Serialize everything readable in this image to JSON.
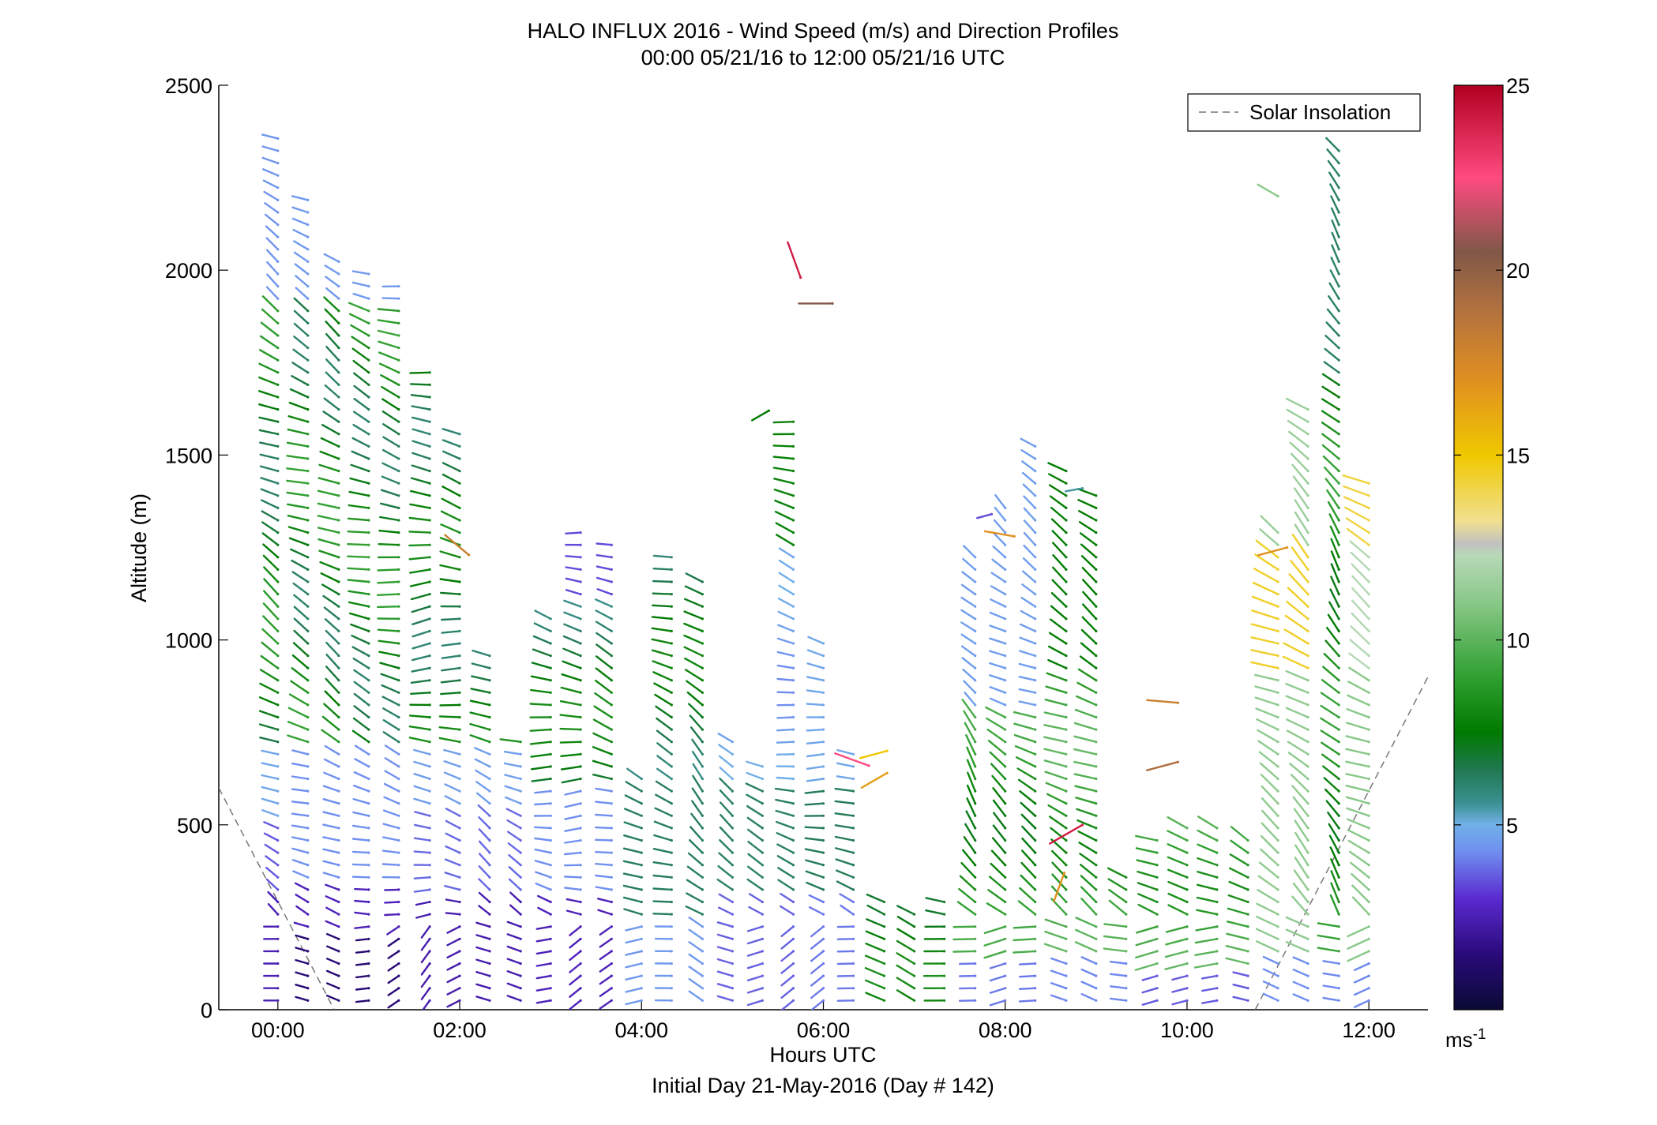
{
  "chart_data": {
    "type": "wind-barb-profile",
    "title": "HALO INFLUX 2016 - Wind Speed (m/s) and Direction Profiles",
    "subtitle": "00:00 05/21/16 to 12:00 05/21/16  UTC",
    "xlabel": "Hours UTC",
    "xlabel2": "Initial Day 21-May-2016 (Day # 142)",
    "ylabel": "Altitude (m)",
    "xlim": [
      -0.65,
      12.65
    ],
    "ylim": [
      0,
      2500
    ],
    "xticks": [
      {
        "value": 0,
        "label": "00:00"
      },
      {
        "value": 2,
        "label": "02:00"
      },
      {
        "value": 4,
        "label": "04:00"
      },
      {
        "value": 6,
        "label": "06:00"
      },
      {
        "value": 8,
        "label": "08:00"
      },
      {
        "value": 10,
        "label": "10:00"
      },
      {
        "value": 12,
        "label": "12:00"
      }
    ],
    "yticks": [
      {
        "value": 0,
        "label": "0"
      },
      {
        "value": 500,
        "label": "500"
      },
      {
        "value": 1000,
        "label": "1000"
      },
      {
        "value": 1500,
        "label": "1500"
      },
      {
        "value": 2000,
        "label": "2000"
      },
      {
        "value": 2500,
        "label": "2500"
      }
    ],
    "legend": {
      "label": "Solar Insolation",
      "position": "top-right"
    },
    "colorbar": {
      "range": [
        0,
        25
      ],
      "ticks": [
        {
          "value": 5,
          "label": "5"
        },
        {
          "value": 10,
          "label": "10"
        },
        {
          "value": 15,
          "label": "15"
        },
        {
          "value": 20,
          "label": "20"
        },
        {
          "value": 25,
          "label": "25"
        }
      ],
      "unit_base": "ms",
      "unit_exp": "-1",
      "stops": [
        {
          "v": 0,
          "c": "#0a0a35"
        },
        {
          "v": 1.5,
          "c": "#2a0a7a"
        },
        {
          "v": 3,
          "c": "#5a2ad0"
        },
        {
          "v": 4.3,
          "c": "#7090f0"
        },
        {
          "v": 5,
          "c": "#70b0e8"
        },
        {
          "v": 5.6,
          "c": "#3a9090"
        },
        {
          "v": 6.5,
          "c": "#207850"
        },
        {
          "v": 7.5,
          "c": "#007a00"
        },
        {
          "v": 9,
          "c": "#30a030"
        },
        {
          "v": 11,
          "c": "#88c888"
        },
        {
          "v": 12.3,
          "c": "#b8d8b8"
        },
        {
          "v": 12.6,
          "c": "#c0c0c0"
        },
        {
          "v": 13.2,
          "c": "#f0e090"
        },
        {
          "v": 15,
          "c": "#f0c800"
        },
        {
          "v": 17,
          "c": "#e09020"
        },
        {
          "v": 19,
          "c": "#b07040"
        },
        {
          "v": 20.5,
          "c": "#805848"
        },
        {
          "v": 22.5,
          "c": "#ff4a80"
        },
        {
          "v": 25,
          "c": "#b00020"
        }
      ]
    },
    "solar_insolation": {
      "left": [
        {
          "x": -0.65,
          "y": 600
        },
        {
          "x": 0.62,
          "y": 0
        }
      ],
      "right": [
        {
          "x": 10.75,
          "y": 0
        },
        {
          "x": 12.65,
          "y": 900
        }
      ]
    },
    "profile_times": [
      0.0,
      0.33,
      0.67,
      1.0,
      1.33,
      1.67,
      2.0,
      2.33,
      2.67,
      3.0,
      3.33,
      3.67,
      4.0,
      4.33,
      4.67,
      5.0,
      5.33,
      5.67,
      6.0,
      6.33,
      6.67,
      7.0,
      7.33,
      7.67,
      8.0,
      8.33,
      8.67,
      9.0,
      9.33,
      9.67,
      10.0,
      10.33,
      10.67,
      11.0,
      11.33,
      11.67,
      12.0
    ],
    "profile_tops": [
      2360,
      2220,
      2040,
      2020,
      1960,
      1740,
      1590,
      990,
      730,
      1080,
      1300,
      1270,
      650,
      1230,
      1170,
      750,
      690,
      1600,
      1000,
      700,
      310,
      280,
      300,
      1230,
      1360,
      1540,
      1480,
      1420,
      380,
      460,
      520,
      520,
      480,
      1310,
      1640,
      2340,
      1450
    ],
    "profile_dirs": [
      300,
      295,
      300,
      290,
      285,
      270,
      280,
      300,
      295,
      280,
      275,
      290,
      300,
      290,
      310,
      300,
      290,
      285,
      280,
      295,
      300,
      310,
      300,
      320,
      305,
      300,
      300,
      300,
      300,
      300,
      310,
      300,
      300,
      300,
      310,
      320,
      300
    ],
    "isolated_barbs": [
      {
        "t": 6.1,
        "z": 1910,
        "s": 20.5,
        "d": 270
      },
      {
        "t": 5.75,
        "z": 1980,
        "s": 24,
        "d": 340
      },
      {
        "t": 6.7,
        "z": 700,
        "s": 15,
        "d": 255
      },
      {
        "t": 6.7,
        "z": 640,
        "s": 16.5,
        "d": 240
      },
      {
        "t": 6.5,
        "z": 660,
        "s": 22.5,
        "d": 290
      },
      {
        "t": 2.1,
        "z": 1230,
        "s": 18,
        "d": 310
      },
      {
        "t": 5.4,
        "z": 1620,
        "s": 7.5,
        "d": 240
      },
      {
        "t": 8.85,
        "z": 1410,
        "s": 5.5,
        "d": 260
      },
      {
        "t": 7.85,
        "z": 1340,
        "s": 3.5,
        "d": 255
      },
      {
        "t": 8.1,
        "z": 1280,
        "s": 17,
        "d": 280
      },
      {
        "t": 8.85,
        "z": 500,
        "s": 24,
        "d": 240
      },
      {
        "t": 8.65,
        "z": 370,
        "s": 17,
        "d": 200
      },
      {
        "t": 9.9,
        "z": 830,
        "s": 18,
        "d": 275
      },
      {
        "t": 9.9,
        "z": 670,
        "s": 19,
        "d": 255
      },
      {
        "t": 11.1,
        "z": 1250,
        "s": 17,
        "d": 255
      },
      {
        "t": 11.0,
        "z": 2200,
        "s": 11,
        "d": 300
      }
    ]
  }
}
